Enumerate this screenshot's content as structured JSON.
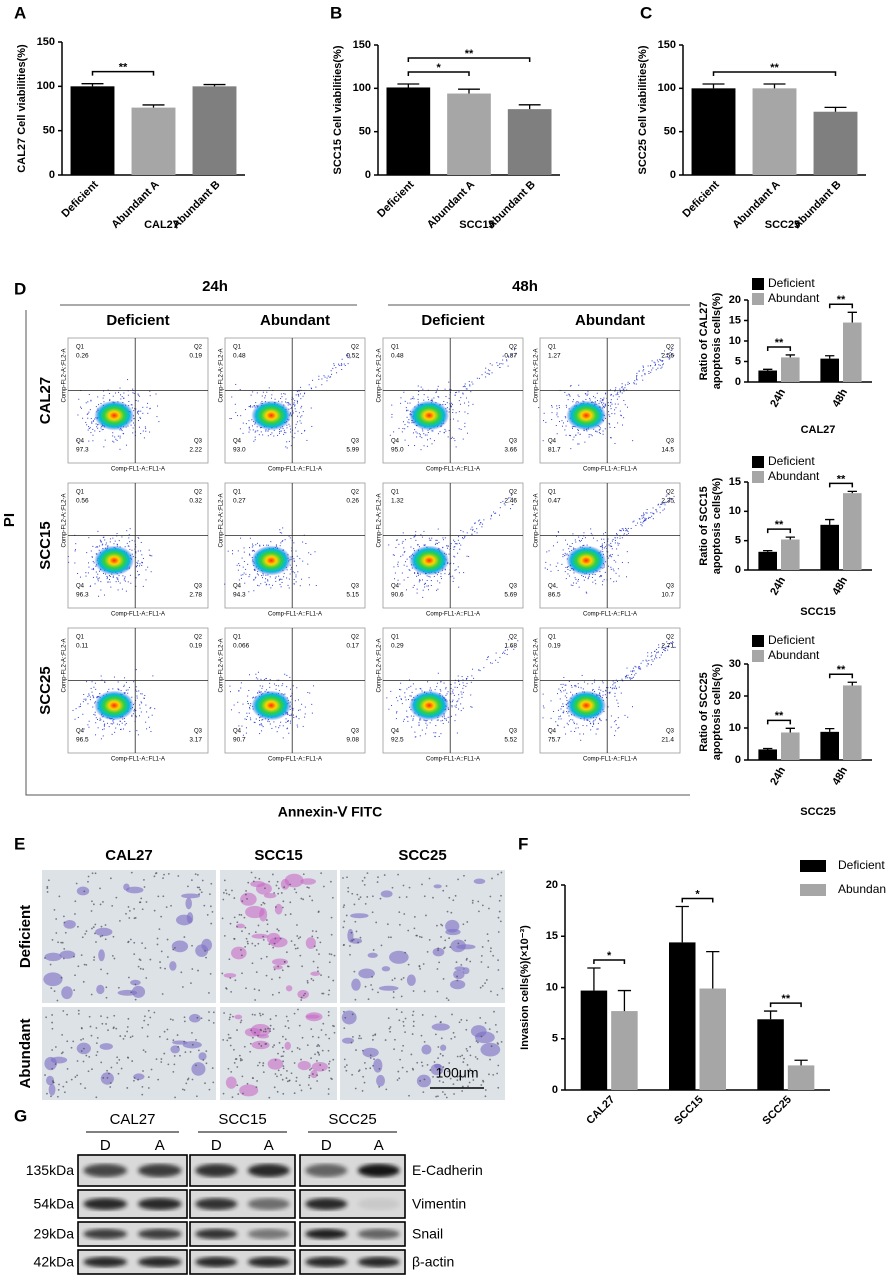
{
  "panel_labels": [
    "A",
    "B",
    "C",
    "D",
    "E",
    "F",
    "G"
  ],
  "chart_data": [
    {
      "type": "bar",
      "ylabel": "CAL27 Cell viabilities(%)",
      "xlabel": "CAL27",
      "categories": [
        "Deficient",
        "Abundant A",
        "Abundant B"
      ],
      "values": [
        100,
        76,
        100
      ],
      "errors": [
        3,
        3,
        2
      ],
      "colors": [
        "#000000",
        "#a6a6a6",
        "#7f7f7f"
      ],
      "ylim": [
        0,
        150
      ],
      "yticks": [
        0,
        50,
        100,
        150
      ],
      "annotations": [
        {
          "text": "**",
          "from": 0,
          "to": 1
        }
      ]
    },
    {
      "type": "bar",
      "ylabel": "SCC15 Cell viabilities(%)",
      "xlabel": "SCC15",
      "categories": [
        "Deficient",
        "Abundant A",
        "Abundant B"
      ],
      "values": [
        101,
        94,
        76
      ],
      "errors": [
        4,
        5,
        5
      ],
      "colors": [
        "#000000",
        "#a6a6a6",
        "#7f7f7f"
      ],
      "ylim": [
        0,
        150
      ],
      "yticks": [
        0,
        50,
        100,
        150
      ],
      "annotations": [
        {
          "text": "*",
          "from": 0,
          "to": 1
        },
        {
          "text": "**",
          "from": 0,
          "to": 2
        }
      ]
    },
    {
      "type": "bar",
      "ylabel": "SCC25 Cell viabilities(%)",
      "xlabel": "SCC25",
      "categories": [
        "Deficient",
        "Abundant A",
        "Abundant B"
      ],
      "values": [
        100,
        100,
        73
      ],
      "errors": [
        5,
        5,
        5
      ],
      "colors": [
        "#000000",
        "#a6a6a6",
        "#7f7f7f"
      ],
      "ylim": [
        0,
        150
      ],
      "yticks": [
        0,
        50,
        100,
        150
      ],
      "annotations": [
        {
          "text": "**",
          "from": 0,
          "to": 2
        }
      ]
    },
    {
      "type": "grouped_bar",
      "ylabel": [
        "Ratio of CAL27",
        "apoptosis cells(%)"
      ],
      "xlabel": "CAL27",
      "categories": [
        "24h",
        "48h"
      ],
      "series": [
        {
          "name": "Deficient",
          "color": "#000000",
          "values": [
            2.8,
            5.7
          ],
          "errors": [
            0.3,
            0.7
          ]
        },
        {
          "name": "Abundant",
          "color": "#a6a6a6",
          "values": [
            6.0,
            14.5
          ],
          "errors": [
            0.6,
            2.5
          ]
        }
      ],
      "ylim": [
        0,
        20
      ],
      "yticks": [
        0,
        5,
        10,
        15,
        20
      ],
      "annotations": [
        {
          "text": "**",
          "category": 0
        },
        {
          "text": "**",
          "category": 1
        }
      ]
    },
    {
      "type": "grouped_bar",
      "ylabel": [
        "Ratio of SCC15",
        "apoptosis cells(%)"
      ],
      "xlabel": "SCC15",
      "categories": [
        "24h",
        "48h"
      ],
      "series": [
        {
          "name": "Deficient",
          "color": "#000000",
          "values": [
            3.1,
            7.7
          ],
          "errors": [
            0.2,
            0.9
          ]
        },
        {
          "name": "Abundant",
          "color": "#a6a6a6",
          "values": [
            5.2,
            13.1
          ],
          "errors": [
            0.4,
            0.3
          ]
        }
      ],
      "ylim": [
        0,
        15
      ],
      "yticks": [
        0,
        5,
        10,
        15
      ],
      "annotations": [
        {
          "text": "**",
          "category": 0
        },
        {
          "text": "**",
          "category": 1
        }
      ]
    },
    {
      "type": "grouped_bar",
      "ylabel": [
        "Ratio of SCC25",
        "apoptosis cells(%)"
      ],
      "xlabel": "SCC25",
      "categories": [
        "24h",
        "48h"
      ],
      "series": [
        {
          "name": "Deficient",
          "color": "#000000",
          "values": [
            3.3,
            8.8
          ],
          "errors": [
            0.3,
            1.0
          ]
        },
        {
          "name": "Abundant",
          "color": "#a6a6a6",
          "values": [
            8.6,
            23.3
          ],
          "errors": [
            1.3,
            1.0
          ]
        }
      ],
      "ylim": [
        0,
        30
      ],
      "yticks": [
        0,
        10,
        20,
        30
      ],
      "annotations": [
        {
          "text": "**",
          "category": 0
        },
        {
          "text": "**",
          "category": 1
        }
      ]
    },
    {
      "type": "grouped_bar",
      "ylabel": "Invasion cells(%)(×10⁻³)",
      "categories": [
        "CAL27",
        "SCC15",
        "SCC25"
      ],
      "series": [
        {
          "name": "Deficient",
          "color": "#000000",
          "values": [
            9.7,
            14.4,
            6.9
          ],
          "errors": [
            2.2,
            3.5,
            0.8
          ]
        },
        {
          "name": "Abundant",
          "color": "#a6a6a6",
          "values": [
            7.7,
            9.9,
            2.4
          ],
          "errors": [
            2.0,
            3.6,
            0.5
          ]
        }
      ],
      "ylim": [
        0,
        20
      ],
      "yticks": [
        0,
        5,
        10,
        15,
        20
      ],
      "annotations": [
        {
          "text": "*",
          "category": 0
        },
        {
          "text": "*",
          "category": 1
        },
        {
          "text": "**",
          "category": 2
        }
      ]
    }
  ],
  "flow": {
    "time_labels": [
      "24h",
      "48h"
    ],
    "condition_labels": [
      "Deficient",
      "Abundant",
      "Deficient",
      "Abundant"
    ],
    "row_labels": [
      "CAL27",
      "SCC15",
      "SCC25"
    ],
    "y_axis_label": "PI",
    "x_axis_label": "Annexin-Ⅴ FITC",
    "quadrant_names": [
      "Q1",
      "Q2",
      "Q3",
      "Q4"
    ],
    "plot_x_label": "Comp-FL1-A::FL1-A",
    "plot_y_label": "Comp-FL2-A::FL2-A",
    "plots": [
      [
        [
          "0.26",
          "0.19",
          "2.22",
          "97.3"
        ],
        [
          "0.48",
          "0.52",
          "5.99",
          "93.0"
        ],
        [
          "0.48",
          "0.87",
          "3.66",
          "95.0"
        ],
        [
          "1.27",
          "2.56",
          "14.5",
          "81.7"
        ]
      ],
      [
        [
          "0.56",
          "0.32",
          "2.78",
          "96.3"
        ],
        [
          "0.27",
          "0.26",
          "5.15",
          "94.3"
        ],
        [
          "1.32",
          "2.46",
          "5.69",
          "90.6"
        ],
        [
          "0.47",
          "2.35",
          "10.7",
          "86.5"
        ]
      ],
      [
        [
          "0.11",
          "0.19",
          "3.17",
          "96.5"
        ],
        [
          "0.066",
          "0.17",
          "9.08",
          "90.7"
        ],
        [
          "0.29",
          "1.68",
          "5.52",
          "92.5"
        ],
        [
          "0.19",
          "2.71",
          "21.4",
          "75.7"
        ]
      ]
    ]
  },
  "invasion_images": {
    "columns": [
      "CAL27",
      "SCC15",
      "SCC25"
    ],
    "rows": [
      "Deficient",
      "Abundant"
    ],
    "scale_bar": "100μm"
  },
  "western_blot": {
    "groups": [
      "CAL27",
      "SCC15",
      "SCC25"
    ],
    "lanes": [
      "D",
      "A",
      "D",
      "A",
      "D",
      "A"
    ],
    "rows": [
      {
        "size": "135kDa",
        "protein": "E-Cadherin"
      },
      {
        "size": "54kDa",
        "protein": "Vimentin"
      },
      {
        "size": "29kDa",
        "protein": "Snail"
      },
      {
        "size": "42kDa",
        "protein": "β-actin"
      }
    ]
  }
}
